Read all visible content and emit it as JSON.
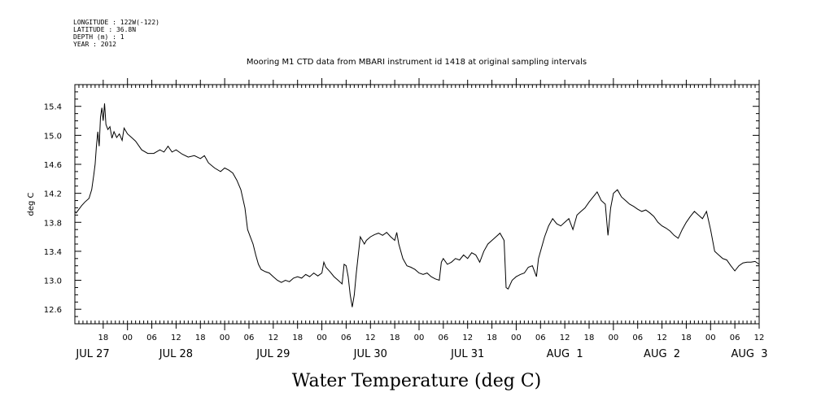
{
  "meta_lines": [
    "LONGITUDE : 122W(-122)",
    "LATITUDE : 36.8N",
    "DEPTH (m) : 1",
    "YEAR : 2012"
  ],
  "chart_data": {
    "type": "line",
    "title": "Mooring M1 CTD data from MBARI instrument id 1418 at original sampling intervals",
    "xlabel": "Water Temperature (deg C)",
    "ylabel": "deg C",
    "xlim": [
      "2012-07-27T11:00",
      "2012-08-03T12:00"
    ],
    "ylim": [
      12.4,
      15.7
    ],
    "y_ticks": [
      12.6,
      13.0,
      13.4,
      13.8,
      14.2,
      14.6,
      15.0,
      15.4
    ],
    "x_hour_ticks": [
      {
        "t": "2012-07-27T18:00",
        "label": "18"
      },
      {
        "t": "2012-07-28T00:00",
        "label": "00"
      },
      {
        "t": "2012-07-28T06:00",
        "label": "06"
      },
      {
        "t": "2012-07-28T12:00",
        "label": "12"
      },
      {
        "t": "2012-07-28T18:00",
        "label": "18"
      },
      {
        "t": "2012-07-29T00:00",
        "label": "00"
      },
      {
        "t": "2012-07-29T06:00",
        "label": "06"
      },
      {
        "t": "2012-07-29T12:00",
        "label": "12"
      },
      {
        "t": "2012-07-29T18:00",
        "label": "18"
      },
      {
        "t": "2012-07-30T00:00",
        "label": "00"
      },
      {
        "t": "2012-07-30T06:00",
        "label": "06"
      },
      {
        "t": "2012-07-30T12:00",
        "label": "12"
      },
      {
        "t": "2012-07-30T18:00",
        "label": "18"
      },
      {
        "t": "2012-07-31T00:00",
        "label": "00"
      },
      {
        "t": "2012-07-31T06:00",
        "label": "06"
      },
      {
        "t": "2012-07-31T12:00",
        "label": "12"
      },
      {
        "t": "2012-07-31T18:00",
        "label": "18"
      },
      {
        "t": "2012-08-01T00:00",
        "label": "00"
      },
      {
        "t": "2012-08-01T06:00",
        "label": "06"
      },
      {
        "t": "2012-08-01T12:00",
        "label": "12"
      },
      {
        "t": "2012-08-01T18:00",
        "label": "18"
      },
      {
        "t": "2012-08-02T00:00",
        "label": "00"
      },
      {
        "t": "2012-08-02T06:00",
        "label": "06"
      },
      {
        "t": "2012-08-02T12:00",
        "label": "12"
      },
      {
        "t": "2012-08-02T18:00",
        "label": "18"
      },
      {
        "t": "2012-08-03T00:00",
        "label": "00"
      },
      {
        "t": "2012-08-03T06:00",
        "label": "06"
      },
      {
        "t": "2012-08-03T12:00",
        "label": "12"
      }
    ],
    "x_day_labels": [
      {
        "t": "2012-07-27T12:00",
        "label": "JUL 27"
      },
      {
        "t": "2012-07-28T12:00",
        "label": "JUL 28"
      },
      {
        "t": "2012-07-29T12:00",
        "label": "JUL 29"
      },
      {
        "t": "2012-07-30T12:00",
        "label": "JUL 30"
      },
      {
        "t": "2012-07-31T12:00",
        "label": "JUL 31"
      },
      {
        "t": "2012-08-01T12:00",
        "label": "AUG  1"
      },
      {
        "t": "2012-08-02T12:00",
        "label": "AUG  2"
      },
      {
        "t": "2012-08-03T12:00",
        "label": "AUG  3"
      }
    ],
    "series": [
      {
        "points": [
          [
            "2012-07-27T11:00",
            13.95
          ],
          [
            "2012-07-27T11:20",
            13.93
          ],
          [
            "2012-07-27T12:00",
            13.98
          ],
          [
            "2012-07-27T12:40",
            14.03
          ],
          [
            "2012-07-27T13:30",
            14.08
          ],
          [
            "2012-07-27T14:30",
            14.13
          ],
          [
            "2012-07-27T15:10",
            14.25
          ],
          [
            "2012-07-27T15:40",
            14.45
          ],
          [
            "2012-07-27T16:00",
            14.6
          ],
          [
            "2012-07-27T16:20",
            14.85
          ],
          [
            "2012-07-27T16:40",
            15.05
          ],
          [
            "2012-07-27T17:00",
            14.85
          ],
          [
            "2012-07-27T17:20",
            15.25
          ],
          [
            "2012-07-27T17:40",
            15.38
          ],
          [
            "2012-07-27T18:00",
            15.2
          ],
          [
            "2012-07-27T18:20",
            15.44
          ],
          [
            "2012-07-27T18:40",
            15.15
          ],
          [
            "2012-07-27T19:10",
            15.08
          ],
          [
            "2012-07-27T19:40",
            15.12
          ],
          [
            "2012-07-27T20:10",
            14.96
          ],
          [
            "2012-07-27T20:40",
            15.05
          ],
          [
            "2012-07-27T21:20",
            14.97
          ],
          [
            "2012-07-27T22:00",
            15.02
          ],
          [
            "2012-07-27T22:40",
            14.93
          ],
          [
            "2012-07-27T23:10",
            15.1
          ],
          [
            "2012-07-28T00:00",
            15.02
          ],
          [
            "2012-07-28T01:00",
            14.97
          ],
          [
            "2012-07-28T02:00",
            14.92
          ],
          [
            "2012-07-28T03:30",
            14.8
          ],
          [
            "2012-07-28T05:00",
            14.75
          ],
          [
            "2012-07-28T06:30",
            14.75
          ],
          [
            "2012-07-28T08:00",
            14.8
          ],
          [
            "2012-07-28T09:00",
            14.77
          ],
          [
            "2012-07-28T10:00",
            14.85
          ],
          [
            "2012-07-28T11:00",
            14.77
          ],
          [
            "2012-07-28T12:00",
            14.8
          ],
          [
            "2012-07-28T13:30",
            14.74
          ],
          [
            "2012-07-28T15:00",
            14.7
          ],
          [
            "2012-07-28T16:30",
            14.72
          ],
          [
            "2012-07-28T18:00",
            14.68
          ],
          [
            "2012-07-28T19:00",
            14.72
          ],
          [
            "2012-07-28T20:00",
            14.62
          ],
          [
            "2012-07-28T21:30",
            14.55
          ],
          [
            "2012-07-28T23:00",
            14.5
          ],
          [
            "2012-07-29T00:00",
            14.55
          ],
          [
            "2012-07-29T01:00",
            14.52
          ],
          [
            "2012-07-29T02:00",
            14.48
          ],
          [
            "2012-07-29T03:00",
            14.38
          ],
          [
            "2012-07-29T04:00",
            14.25
          ],
          [
            "2012-07-29T05:00",
            14.0
          ],
          [
            "2012-07-29T05:40",
            13.7
          ],
          [
            "2012-07-29T06:20",
            13.6
          ],
          [
            "2012-07-29T07:00",
            13.5
          ],
          [
            "2012-07-29T07:40",
            13.35
          ],
          [
            "2012-07-29T08:20",
            13.22
          ],
          [
            "2012-07-29T09:00",
            13.15
          ],
          [
            "2012-07-29T10:00",
            13.12
          ],
          [
            "2012-07-29T11:00",
            13.1
          ],
          [
            "2012-07-29T12:00",
            13.05
          ],
          [
            "2012-07-29T13:00",
            13.0
          ],
          [
            "2012-07-29T14:00",
            12.97
          ],
          [
            "2012-07-29T15:00",
            13.0
          ],
          [
            "2012-07-29T16:00",
            12.98
          ],
          [
            "2012-07-29T17:00",
            13.03
          ],
          [
            "2012-07-29T18:00",
            13.05
          ],
          [
            "2012-07-29T19:00",
            13.03
          ],
          [
            "2012-07-29T20:00",
            13.08
          ],
          [
            "2012-07-29T21:00",
            13.05
          ],
          [
            "2012-07-29T22:00",
            13.1
          ],
          [
            "2012-07-29T23:00",
            13.06
          ],
          [
            "2012-07-30T00:00",
            13.1
          ],
          [
            "2012-07-30T00:30",
            13.25
          ],
          [
            "2012-07-30T01:00",
            13.18
          ],
          [
            "2012-07-30T02:00",
            13.12
          ],
          [
            "2012-07-30T03:00",
            13.05
          ],
          [
            "2012-07-30T04:00",
            13.0
          ],
          [
            "2012-07-30T05:00",
            12.95
          ],
          [
            "2012-07-30T05:30",
            13.22
          ],
          [
            "2012-07-30T06:00",
            13.2
          ],
          [
            "2012-07-30T06:30",
            13.05
          ],
          [
            "2012-07-30T07:00",
            12.8
          ],
          [
            "2012-07-30T07:30",
            12.63
          ],
          [
            "2012-07-30T08:00",
            12.8
          ],
          [
            "2012-07-30T08:30",
            13.1
          ],
          [
            "2012-07-30T09:00",
            13.35
          ],
          [
            "2012-07-30T09:30",
            13.6
          ],
          [
            "2012-07-30T10:00",
            13.55
          ],
          [
            "2012-07-30T10:30",
            13.5
          ],
          [
            "2012-07-30T11:00",
            13.55
          ],
          [
            "2012-07-30T12:00",
            13.6
          ],
          [
            "2012-07-30T13:00",
            13.63
          ],
          [
            "2012-07-30T14:00",
            13.65
          ],
          [
            "2012-07-30T15:00",
            13.62
          ],
          [
            "2012-07-30T16:00",
            13.66
          ],
          [
            "2012-07-30T17:00",
            13.6
          ],
          [
            "2012-07-30T18:00",
            13.55
          ],
          [
            "2012-07-30T18:30",
            13.66
          ],
          [
            "2012-07-30T19:00",
            13.5
          ],
          [
            "2012-07-30T20:00",
            13.3
          ],
          [
            "2012-07-30T21:00",
            13.2
          ],
          [
            "2012-07-30T22:00",
            13.18
          ],
          [
            "2012-07-30T23:00",
            13.15
          ],
          [
            "2012-07-31T00:00",
            13.1
          ],
          [
            "2012-07-31T01:00",
            13.08
          ],
          [
            "2012-07-31T02:00",
            13.1
          ],
          [
            "2012-07-31T03:00",
            13.05
          ],
          [
            "2012-07-31T04:00",
            13.02
          ],
          [
            "2012-07-31T05:00",
            13.0
          ],
          [
            "2012-07-31T05:30",
            13.25
          ],
          [
            "2012-07-31T06:00",
            13.3
          ],
          [
            "2012-07-31T07:00",
            13.22
          ],
          [
            "2012-07-31T08:00",
            13.25
          ],
          [
            "2012-07-31T09:00",
            13.3
          ],
          [
            "2012-07-31T10:00",
            13.28
          ],
          [
            "2012-07-31T11:00",
            13.35
          ],
          [
            "2012-07-31T12:00",
            13.3
          ],
          [
            "2012-07-31T13:00",
            13.38
          ],
          [
            "2012-07-31T14:00",
            13.35
          ],
          [
            "2012-07-31T15:00",
            13.25
          ],
          [
            "2012-07-31T16:00",
            13.4
          ],
          [
            "2012-07-31T17:00",
            13.5
          ],
          [
            "2012-07-31T18:00",
            13.55
          ],
          [
            "2012-07-31T19:00",
            13.6
          ],
          [
            "2012-07-31T20:00",
            13.65
          ],
          [
            "2012-07-31T21:00",
            13.55
          ],
          [
            "2012-07-31T21:30",
            12.9
          ],
          [
            "2012-07-31T22:00",
            12.88
          ],
          [
            "2012-07-31T23:00",
            13.0
          ],
          [
            "2012-08-01T00:00",
            13.05
          ],
          [
            "2012-08-01T01:00",
            13.08
          ],
          [
            "2012-08-01T02:00",
            13.1
          ],
          [
            "2012-08-01T03:00",
            13.18
          ],
          [
            "2012-08-01T04:00",
            13.2
          ],
          [
            "2012-08-01T05:00",
            13.05
          ],
          [
            "2012-08-01T05:30",
            13.3
          ],
          [
            "2012-08-01T06:00",
            13.4
          ],
          [
            "2012-08-01T07:00",
            13.6
          ],
          [
            "2012-08-01T08:00",
            13.75
          ],
          [
            "2012-08-01T09:00",
            13.85
          ],
          [
            "2012-08-01T10:00",
            13.78
          ],
          [
            "2012-08-01T11:00",
            13.75
          ],
          [
            "2012-08-01T12:00",
            13.8
          ],
          [
            "2012-08-01T13:00",
            13.85
          ],
          [
            "2012-08-01T14:00",
            13.7
          ],
          [
            "2012-08-01T15:00",
            13.9
          ],
          [
            "2012-08-01T16:00",
            13.95
          ],
          [
            "2012-08-01T17:00",
            14.0
          ],
          [
            "2012-08-01T18:00",
            14.08
          ],
          [
            "2012-08-01T19:00",
            14.15
          ],
          [
            "2012-08-01T20:00",
            14.22
          ],
          [
            "2012-08-01T21:00",
            14.1
          ],
          [
            "2012-08-01T22:00",
            14.05
          ],
          [
            "2012-08-01T22:40",
            13.62
          ],
          [
            "2012-08-01T23:20",
            14.0
          ],
          [
            "2012-08-02T00:00",
            14.2
          ],
          [
            "2012-08-02T01:00",
            14.25
          ],
          [
            "2012-08-02T02:00",
            14.15
          ],
          [
            "2012-08-02T03:00",
            14.1
          ],
          [
            "2012-08-02T04:00",
            14.05
          ],
          [
            "2012-08-02T05:00",
            14.02
          ],
          [
            "2012-08-02T06:00",
            13.98
          ],
          [
            "2012-08-02T07:00",
            13.95
          ],
          [
            "2012-08-02T08:00",
            13.97
          ],
          [
            "2012-08-02T09:00",
            13.93
          ],
          [
            "2012-08-02T10:00",
            13.88
          ],
          [
            "2012-08-02T11:00",
            13.8
          ],
          [
            "2012-08-02T12:00",
            13.75
          ],
          [
            "2012-08-02T13:00",
            13.72
          ],
          [
            "2012-08-02T14:00",
            13.68
          ],
          [
            "2012-08-02T15:00",
            13.62
          ],
          [
            "2012-08-02T16:00",
            13.58
          ],
          [
            "2012-08-02T17:00",
            13.7
          ],
          [
            "2012-08-02T18:00",
            13.8
          ],
          [
            "2012-08-02T19:00",
            13.88
          ],
          [
            "2012-08-02T20:00",
            13.95
          ],
          [
            "2012-08-02T21:00",
            13.9
          ],
          [
            "2012-08-02T22:00",
            13.85
          ],
          [
            "2012-08-02T23:00",
            13.95
          ],
          [
            "2012-08-03T00:00",
            13.7
          ],
          [
            "2012-08-03T01:00",
            13.4
          ],
          [
            "2012-08-03T02:00",
            13.35
          ],
          [
            "2012-08-03T03:00",
            13.3
          ],
          [
            "2012-08-03T04:00",
            13.28
          ],
          [
            "2012-08-03T05:00",
            13.2
          ],
          [
            "2012-08-03T06:00",
            13.13
          ],
          [
            "2012-08-03T07:00",
            13.2
          ],
          [
            "2012-08-03T08:00",
            13.24
          ],
          [
            "2012-08-03T09:00",
            13.25
          ],
          [
            "2012-08-03T10:00",
            13.25
          ],
          [
            "2012-08-03T11:00",
            13.26
          ],
          [
            "2012-08-03T12:00",
            13.22
          ]
        ]
      }
    ]
  }
}
